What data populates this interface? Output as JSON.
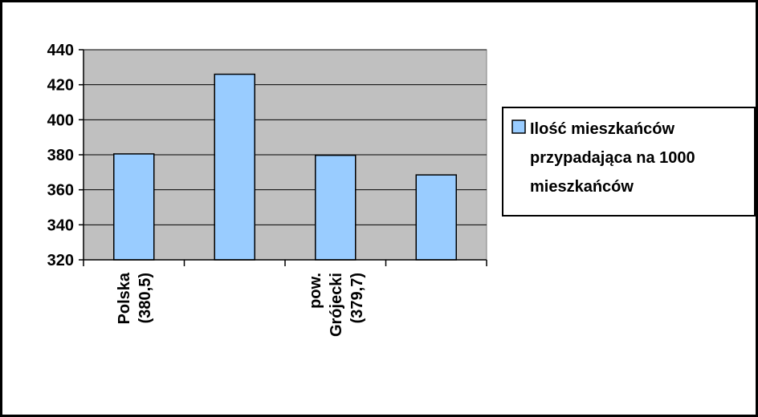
{
  "chart_data": {
    "type": "bar",
    "categories": [
      "Polska (380,5)",
      "",
      "pow. Grójecki (379,7)",
      ""
    ],
    "category_label_lines": [
      [
        "Polska",
        "(380,5)"
      ],
      [],
      [
        "pow.",
        "Grójecki",
        "(379,7)"
      ],
      []
    ],
    "series": [
      {
        "name": "Ilość mieszkańców przypadająca na 1000 mieszkańców",
        "values": [
          380.5,
          426,
          379.7,
          368.5
        ]
      }
    ],
    "legend_lines": [
      "Ilość mieszkańców",
      "przypadająca na 1000",
      "mieszkańców"
    ],
    "ylim": [
      320,
      440
    ],
    "yticks": [
      320,
      340,
      360,
      380,
      400,
      420,
      440
    ],
    "grid": true,
    "legend_position": "right",
    "colors": {
      "plot_background": "#c0c0c0",
      "bar_fill": "#99ccff",
      "bar_stroke": "#000000",
      "gridline": "#000000"
    }
  }
}
